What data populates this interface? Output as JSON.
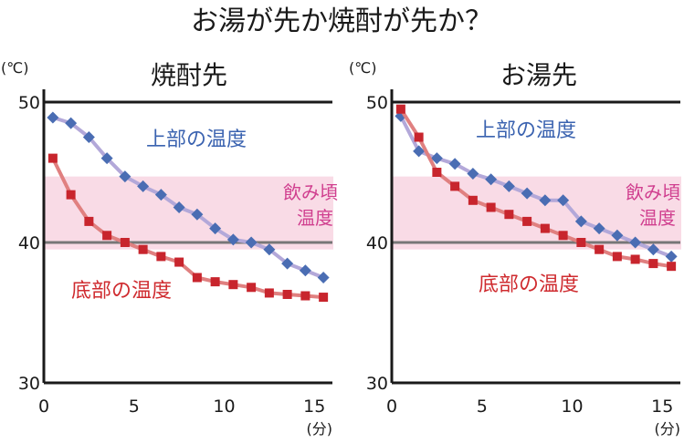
{
  "title": "お湯が先か焼酎が先か？",
  "colors": {
    "top_marker": "#4a6db3",
    "top_line": "#b3a8d9",
    "bottom_marker": "#c8252d",
    "bottom_line": "#e08080",
    "band": "#f9dbe6",
    "band_text": "#d03f8f",
    "top_text": "#3b63b0",
    "bottom_text": "#cf2b2f",
    "axis": "#1a1a1a",
    "ref_line": "#777777"
  },
  "chart_data": [
    {
      "type": "line",
      "title": "焼酎先",
      "y_unit": "(℃)",
      "x_unit": "(分)",
      "xlim": [
        0,
        16
      ],
      "ylim": [
        30,
        50
      ],
      "x_ticks": [
        "0",
        "5",
        "10",
        "15"
      ],
      "y_ticks": [
        "30",
        "40",
        "50"
      ],
      "band": {
        "label": [
          "飲み頃",
          "温度"
        ],
        "range": [
          39.5,
          44.7
        ]
      },
      "series": [
        {
          "name": "上部の温度",
          "x": [
            0.5,
            1.5,
            2.5,
            3.5,
            4.5,
            5.5,
            6.5,
            7.5,
            8.5,
            9.5,
            10.5,
            11.5,
            12.5,
            13.5,
            14.5,
            15.5
          ],
          "values": [
            48.9,
            48.5,
            47.5,
            46.0,
            44.7,
            44.0,
            43.4,
            42.5,
            42.0,
            41.0,
            40.2,
            40.0,
            39.5,
            38.5,
            38.0,
            37.5
          ]
        },
        {
          "name": "底部の温度",
          "x": [
            0.5,
            1.5,
            2.5,
            3.5,
            4.5,
            5.5,
            6.5,
            7.5,
            8.5,
            9.5,
            10.5,
            11.5,
            12.5,
            13.5,
            14.5,
            15.5
          ],
          "values": [
            46.0,
            43.4,
            41.5,
            40.5,
            40.0,
            39.5,
            39.0,
            38.6,
            37.5,
            37.2,
            37.0,
            36.8,
            36.4,
            36.3,
            36.2,
            36.1
          ]
        }
      ]
    },
    {
      "type": "line",
      "title": "お湯先",
      "y_unit": "(℃)",
      "x_unit": "(分)",
      "xlim": [
        0,
        16
      ],
      "ylim": [
        30,
        50
      ],
      "x_ticks": [
        "0",
        "5",
        "10",
        "15"
      ],
      "y_ticks": [
        "30",
        "40",
        "50"
      ],
      "band": {
        "label": [
          "飲み頃",
          "温度"
        ],
        "range": [
          39.5,
          44.7
        ]
      },
      "series": [
        {
          "name": "上部の温度",
          "x": [
            0.5,
            1.5,
            2.5,
            3.5,
            4.5,
            5.5,
            6.5,
            7.5,
            8.5,
            9.5,
            10.5,
            11.5,
            12.5,
            13.5,
            14.5,
            15.5
          ],
          "values": [
            49.0,
            46.5,
            46.0,
            45.6,
            44.9,
            44.5,
            44.0,
            43.5,
            43.0,
            43.0,
            41.5,
            41.0,
            40.5,
            40.0,
            39.5,
            39.0
          ]
        },
        {
          "name": "底部の温度",
          "x": [
            0.5,
            1.5,
            2.5,
            3.5,
            4.5,
            5.5,
            6.5,
            7.5,
            8.5,
            9.5,
            10.5,
            11.5,
            12.5,
            13.5,
            14.5,
            15.5
          ],
          "values": [
            49.5,
            47.5,
            45.0,
            44.0,
            43.0,
            42.5,
            42.0,
            41.5,
            41.0,
            40.5,
            40.0,
            39.5,
            39.0,
            38.8,
            38.5,
            38.3
          ]
        }
      ]
    }
  ]
}
